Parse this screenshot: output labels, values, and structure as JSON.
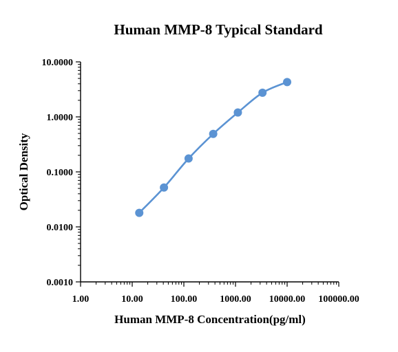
{
  "chart_data": {
    "type": "scatter",
    "title": "Human MMP-8 Typical Standard",
    "xlabel": "Human MMP-8 Concentration(pg/ml)",
    "ylabel": "Optical Density",
    "x_scale": "log",
    "y_scale": "log",
    "xlim": [
      1,
      100000
    ],
    "ylim": [
      0.001,
      10
    ],
    "x_ticks": [
      "1.00",
      "10.00",
      "100.00",
      "1000.00",
      "10000.00",
      "100000.00"
    ],
    "y_ticks": [
      "0.0010",
      "0.0100",
      "0.1000",
      "1.0000",
      "10.0000"
    ],
    "grid": false,
    "series": [
      {
        "x": [
          13.7,
          41.2,
          123.5,
          370.4,
          1111.1,
          3333.3,
          10000
        ],
        "y": [
          0.018,
          0.052,
          0.175,
          0.49,
          1.2,
          2.75,
          4.3
        ],
        "fit_curve": true
      }
    ],
    "colors": {
      "series": "#5b93d3",
      "curve": "#5b93d3"
    }
  }
}
